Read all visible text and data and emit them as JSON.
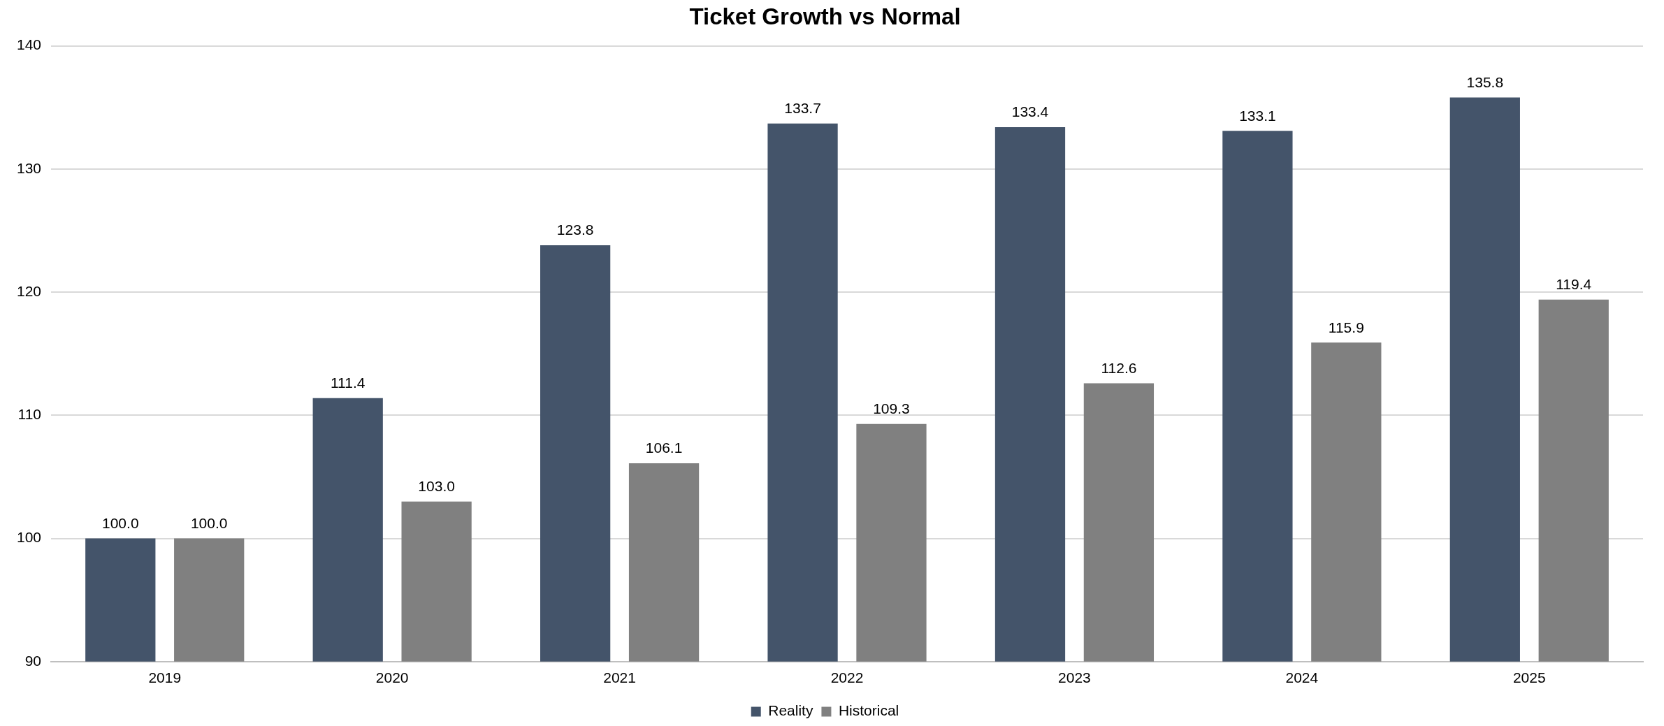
{
  "chart_data": {
    "type": "bar",
    "title": "Ticket Growth vs Normal",
    "categories": [
      "2019",
      "2020",
      "2021",
      "2022",
      "2023",
      "2024",
      "2025"
    ],
    "series": [
      {
        "name": "Reality",
        "color": "#44546a",
        "values": [
          100.0,
          111.4,
          123.8,
          133.7,
          133.4,
          133.1,
          135.8
        ],
        "value_labels": [
          "100.0",
          "111.4",
          "123.8",
          "133.7",
          "133.4",
          "133.1",
          "135.8"
        ]
      },
      {
        "name": "Historical",
        "color": "#808080",
        "values": [
          100.0,
          103.0,
          106.1,
          109.3,
          112.6,
          115.9,
          119.4
        ],
        "value_labels": [
          "100.0",
          "103.0",
          "106.1",
          "109.3",
          "112.6",
          "115.9",
          "119.4"
        ]
      }
    ],
    "ylim": [
      90,
      140
    ],
    "yticks": [
      90,
      100,
      110,
      120,
      130,
      140
    ],
    "grid": "y",
    "legend": "bottom"
  }
}
